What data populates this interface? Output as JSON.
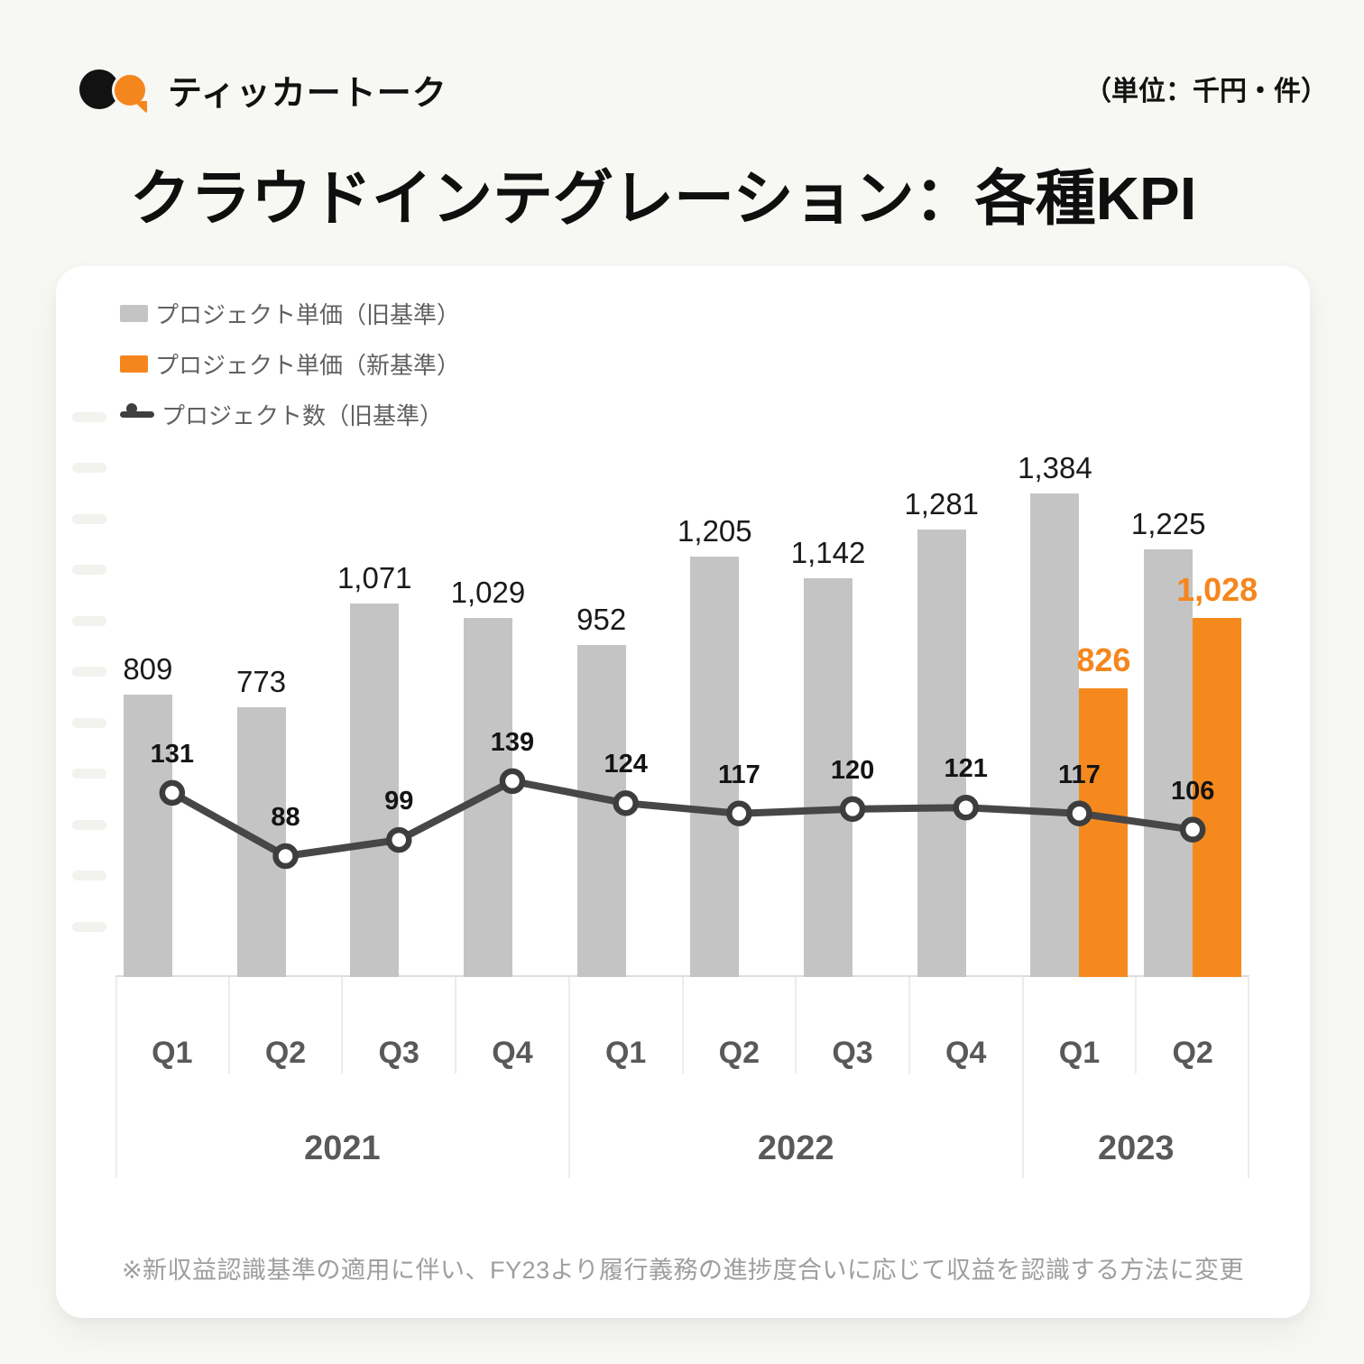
{
  "logo": {
    "text": "ティッカートーク"
  },
  "unit_note": "（単位：千円・件）",
  "title": "クラウドインテグレーション：各種KPI",
  "legend": [
    {
      "label": "プロジェクト単価（旧基準）",
      "swatch": "gray-square"
    },
    {
      "label": "プロジェクト単価（新基準）",
      "swatch": "orange-square"
    },
    {
      "label": "プロジェクト数（旧基準）",
      "swatch": "line-marker"
    }
  ],
  "footnote": "※新収益認識基準の適用に伴い、FY23より履行義務の進捗度合いに応じて収益を認識する方法に変更",
  "colors": {
    "page_bg": "#f7f7f4",
    "card_bg": "#ffffff",
    "bar_old": "#c4c4c4",
    "bar_new": "#f6891e",
    "line": "#474747",
    "accent_orange": "#f5861d",
    "axis_text": "#595959",
    "footnote_text": "#9e9e9e"
  },
  "chart_data": {
    "type": "bar",
    "subtype": "grouped-bars-with-line-overlay",
    "unit": "千円・件",
    "x_labels": [
      "Q1",
      "Q2",
      "Q3",
      "Q4",
      "Q1",
      "Q2",
      "Q3",
      "Q4",
      "Q1",
      "Q2"
    ],
    "x_groups": [
      {
        "label": "2021",
        "span": 4
      },
      {
        "label": "2022",
        "span": 4
      },
      {
        "label": "2023",
        "span": 2
      }
    ],
    "series": [
      {
        "name": "プロジェクト単価（旧基準）",
        "type": "bar",
        "color": "#c4c4c4",
        "values": [
          809,
          773,
          1071,
          1029,
          952,
          1205,
          1142,
          1281,
          1384,
          1225
        ]
      },
      {
        "name": "プロジェクト単価（新基準）",
        "type": "bar",
        "color": "#f6891e",
        "values": [
          null,
          null,
          null,
          null,
          null,
          null,
          null,
          null,
          826,
          1028
        ]
      },
      {
        "name": "プロジェクト数（旧基準）",
        "type": "line",
        "color": "#474747",
        "values": [
          131,
          88,
          99,
          139,
          124,
          117,
          120,
          121,
          117,
          106
        ]
      }
    ],
    "value_labels": true,
    "y_axis_visible": false,
    "legend_position": "top-left"
  }
}
